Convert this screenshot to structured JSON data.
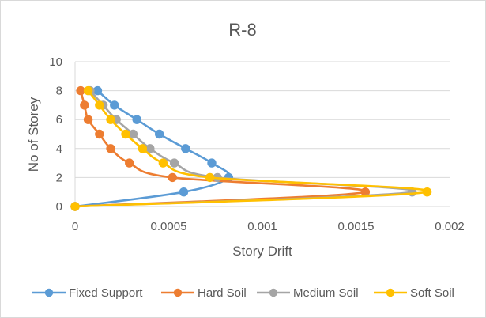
{
  "chart_data": {
    "type": "line",
    "title": "R-8",
    "xlabel": "Story Drift",
    "ylabel": "No of Storey",
    "xlim": [
      0,
      0.002
    ],
    "ylim": [
      0,
      10
    ],
    "x_ticks": [
      "0",
      "0.0005",
      "0.001",
      "0.0015",
      "0.002"
    ],
    "y_ticks": [
      "0",
      "2",
      "4",
      "6",
      "8",
      "10"
    ],
    "grid": "horizontal",
    "smooth": true,
    "legend_position": "bottom",
    "series": [
      {
        "name": "Fixed Support",
        "color": "#5b9bd5",
        "points": [
          [
            0,
            0
          ],
          [
            0.00058,
            1
          ],
          [
            0.00082,
            2
          ],
          [
            0.00073,
            3
          ],
          [
            0.00059,
            4
          ],
          [
            0.00045,
            5
          ],
          [
            0.00033,
            6
          ],
          [
            0.00021,
            7
          ],
          [
            0.00012,
            8
          ]
        ]
      },
      {
        "name": "Hard Soil",
        "color": "#ed7d31",
        "points": [
          [
            0,
            0
          ],
          [
            0.00155,
            1
          ],
          [
            0.00052,
            2
          ],
          [
            0.00029,
            3
          ],
          [
            0.00019,
            4
          ],
          [
            0.00013,
            5
          ],
          [
            7e-05,
            6
          ],
          [
            5e-05,
            7
          ],
          [
            3e-05,
            8
          ]
        ]
      },
      {
        "name": "Medium Soil",
        "color": "#a5a5a5",
        "points": [
          [
            0,
            0
          ],
          [
            0.0018,
            1
          ],
          [
            0.00076,
            2
          ],
          [
            0.00053,
            3
          ],
          [
            0.0004,
            4
          ],
          [
            0.00031,
            5
          ],
          [
            0.00022,
            6
          ],
          [
            0.00015,
            7
          ],
          [
            8e-05,
            8
          ]
        ]
      },
      {
        "name": "Soft Soil",
        "color": "#ffc000",
        "points": [
          [
            0,
            0
          ],
          [
            0.00188,
            1
          ],
          [
            0.00072,
            2
          ],
          [
            0.00047,
            3
          ],
          [
            0.00036,
            4
          ],
          [
            0.00027,
            5
          ],
          [
            0.00019,
            6
          ],
          [
            0.00013,
            7
          ],
          [
            7e-05,
            8
          ]
        ]
      }
    ]
  }
}
